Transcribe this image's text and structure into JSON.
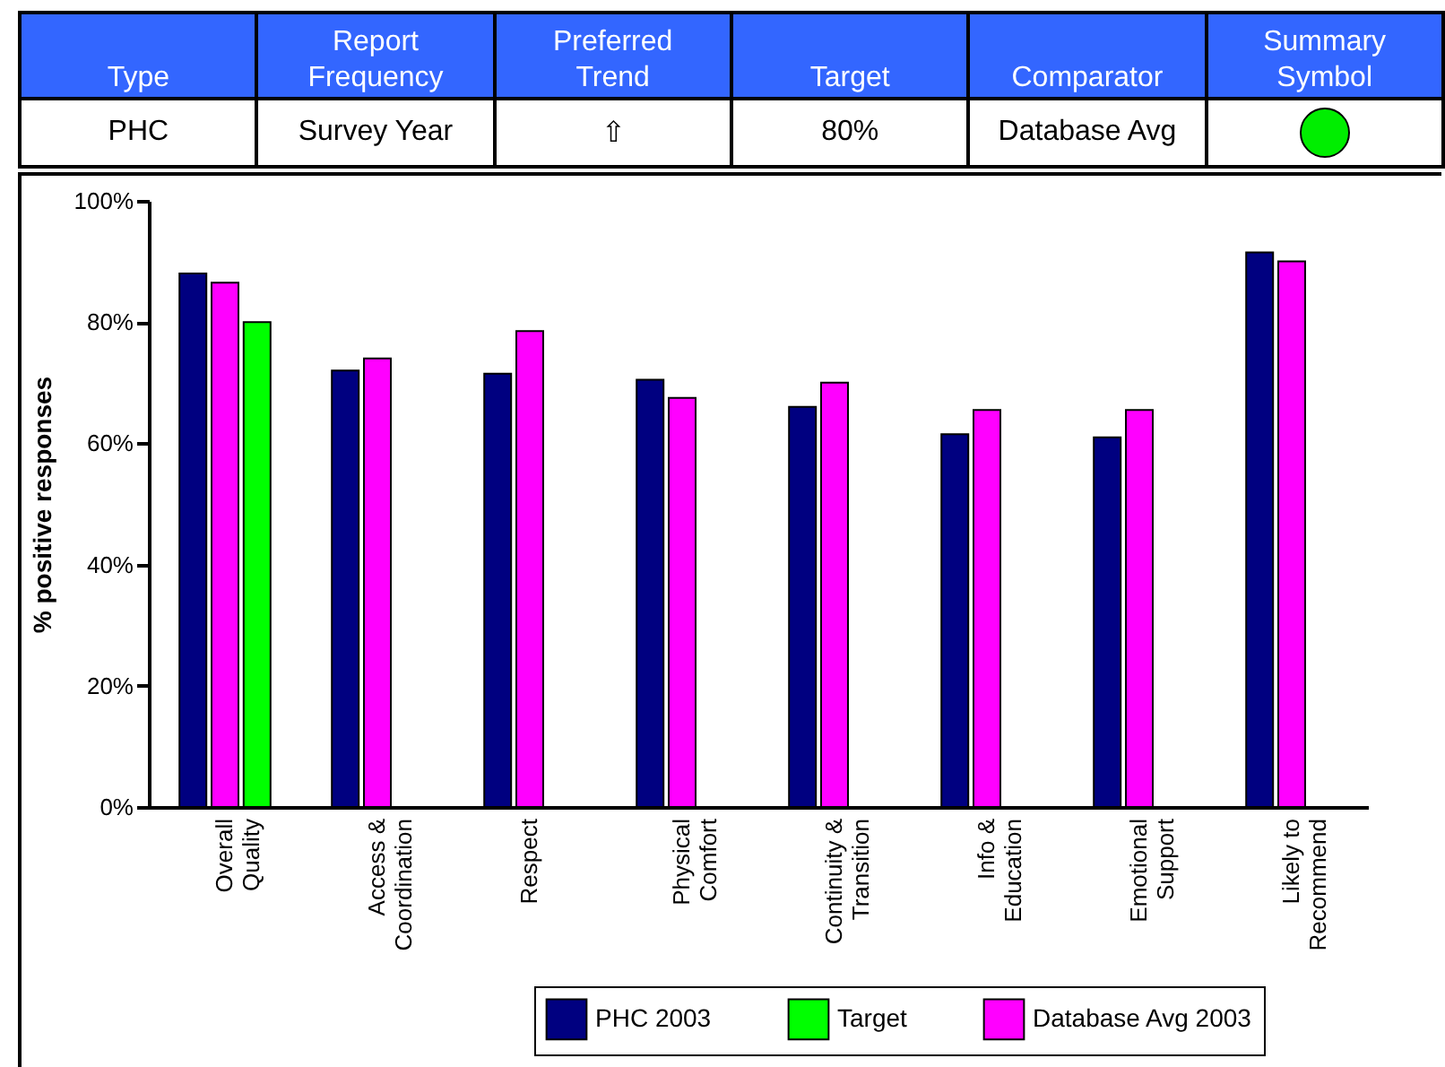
{
  "chart_data": [
    {
      "type": "other",
      "annotations": [
        "Type",
        "Report Frequency",
        "Preferred Trend",
        "Target",
        "Comparator",
        "Summary Symbol",
        "PHC",
        "Survey Year",
        "⇧",
        "80%",
        "Database Avg"
      ]
    },
    {
      "type": "bar",
      "ylabel": "% positive responses",
      "categories": [
        "Overall Quality",
        "Access & Coordination",
        "Respect",
        "Physical Comfort",
        "Continuity & Transition",
        "Info & Education",
        "Emotional Support",
        "Likely to Recommend"
      ],
      "series": [
        {
          "name": "PHC 2003",
          "color": "#000080",
          "values": [
            88,
            72,
            71.5,
            70.5,
            66,
            61.5,
            61,
            91.5
          ]
        },
        {
          "name": "Database Avg 2003",
          "color": "#ff00ff",
          "values": [
            86.5,
            74,
            78.5,
            67.5,
            70,
            65.5,
            65.5,
            90
          ]
        },
        {
          "name": "Target",
          "color": "#00ff00",
          "values": [
            80,
            null,
            null,
            null,
            null,
            null,
            null,
            null
          ]
        }
      ],
      "ylim": [
        0,
        100
      ],
      "yticks": [
        {
          "value": 0,
          "label": "0%"
        },
        {
          "value": 20,
          "label": "20%"
        },
        {
          "value": 40,
          "label": "40%"
        },
        {
          "value": 60,
          "label": "60%"
        },
        {
          "value": 80,
          "label": "80%"
        },
        {
          "value": 100,
          "label": "100%"
        }
      ],
      "legend": "bottom right",
      "grid": false
    }
  ]
}
